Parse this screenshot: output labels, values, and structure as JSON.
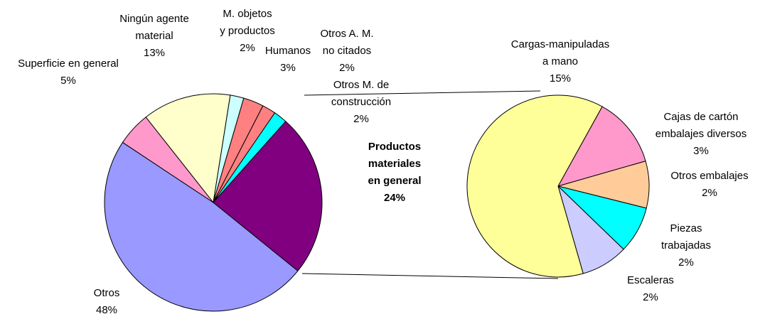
{
  "chart_data": [
    {
      "type": "pie",
      "categories": [
        "Otros",
        "Superficie en general",
        "Ningún agente\nmaterial",
        "M. objetos\ny productos",
        "Humanos",
        "Otros A. M.\nno citados",
        "Otros M. de\nconstrucción",
        "Productos\nmateriales\nen general"
      ],
      "values": [
        48,
        5,
        13,
        2,
        3,
        2,
        2,
        24
      ],
      "value_labels": [
        "48%",
        "5%",
        "13%",
        "2%",
        "3%",
        "2%",
        "2%",
        "24%"
      ],
      "colors": [
        "#9999ff",
        "#ff99cc",
        "#ffffcc",
        "#ccffff",
        "#ff8080",
        "#ff8080",
        "#00ffff",
        "#800080"
      ]
    },
    {
      "type": "pie",
      "categories": [
        "Cajas de cartón\nembalajes diversos",
        "Otros embalajes",
        "Piezas\ntrabajadas",
        "Escaleras",
        "Cargas-manipuladas\na mano"
      ],
      "values": [
        3,
        2,
        2,
        2,
        15
      ],
      "value_labels": [
        "3%",
        "2%",
        "2%",
        "2%",
        "15%"
      ],
      "colors": [
        "#ff99cc",
        "#ffcc99",
        "#00ffff",
        "#ccccff",
        "#ffff99"
      ]
    }
  ]
}
